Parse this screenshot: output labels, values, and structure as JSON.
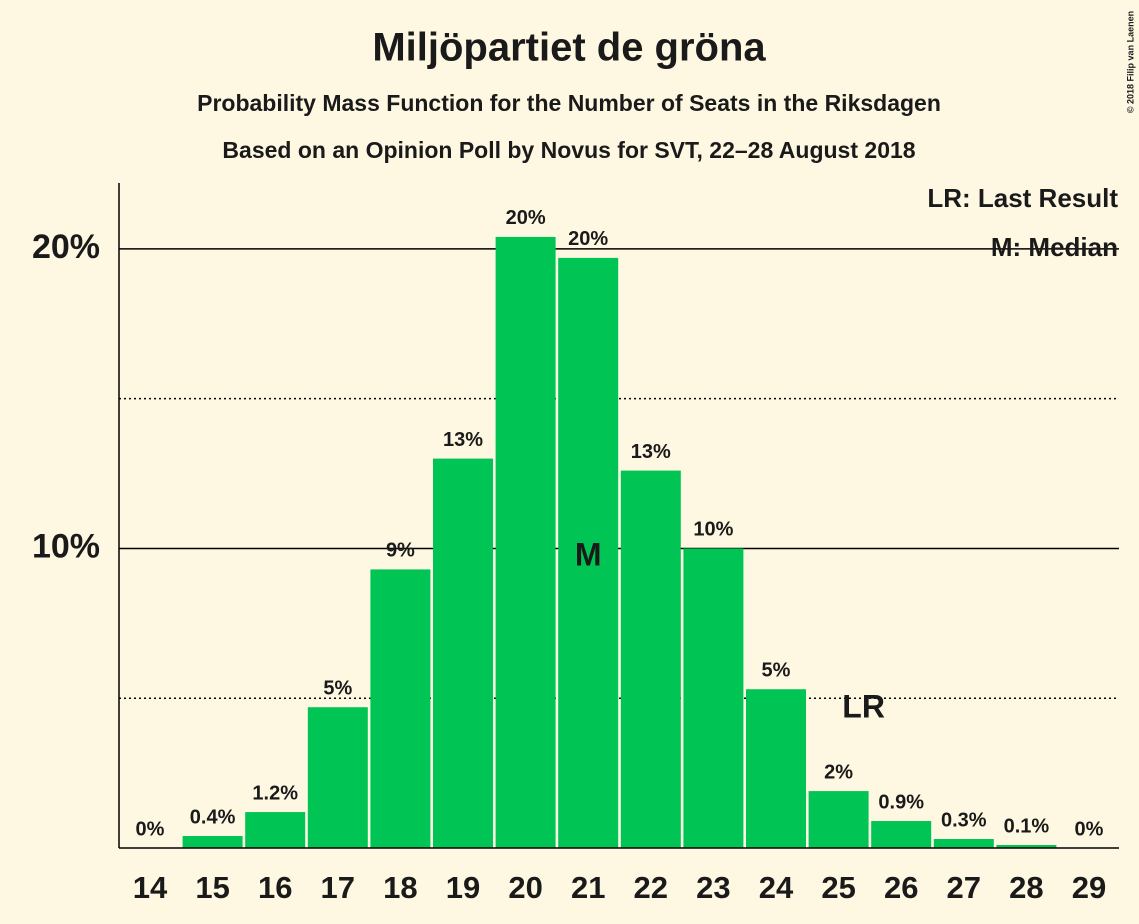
{
  "chart_data": {
    "type": "bar",
    "title": "Miljöpartiet de gröna",
    "subtitles": [
      "Probability Mass Function for the Number of Seats in the Riksdagen",
      "Based on an Opinion Poll by Novus for SVT, 22–28 August 2018"
    ],
    "categories": [
      "14",
      "15",
      "16",
      "17",
      "18",
      "19",
      "20",
      "21",
      "22",
      "23",
      "24",
      "25",
      "26",
      "27",
      "28",
      "29"
    ],
    "values": [
      0,
      0.4,
      1.2,
      4.7,
      9.3,
      13.0,
      20.4,
      19.7,
      12.6,
      10.0,
      5.3,
      1.9,
      0.9,
      0.3,
      0.1,
      0
    ],
    "value_labels": [
      "0%",
      "0.4%",
      "1.2%",
      "5%",
      "9%",
      "13%",
      "20%",
      "20%",
      "13%",
      "10%",
      "5%",
      "2%",
      "0.9%",
      "0.3%",
      "0.1%",
      "0%"
    ],
    "color": "#00c554",
    "ylim": [
      0,
      22.2
    ],
    "yticks": [
      {
        "value": 10,
        "label": "10%"
      },
      {
        "value": 20,
        "label": "20%"
      }
    ],
    "minor_yticks": [
      5,
      15
    ],
    "grid": true,
    "annotations": [
      {
        "text": "M",
        "category": "21"
      },
      {
        "text": "LR",
        "category": "25"
      }
    ],
    "legend_texts": [
      "LR: Last Result",
      "M: Median"
    ],
    "credit": "© 2018 Filip van Laenen"
  }
}
